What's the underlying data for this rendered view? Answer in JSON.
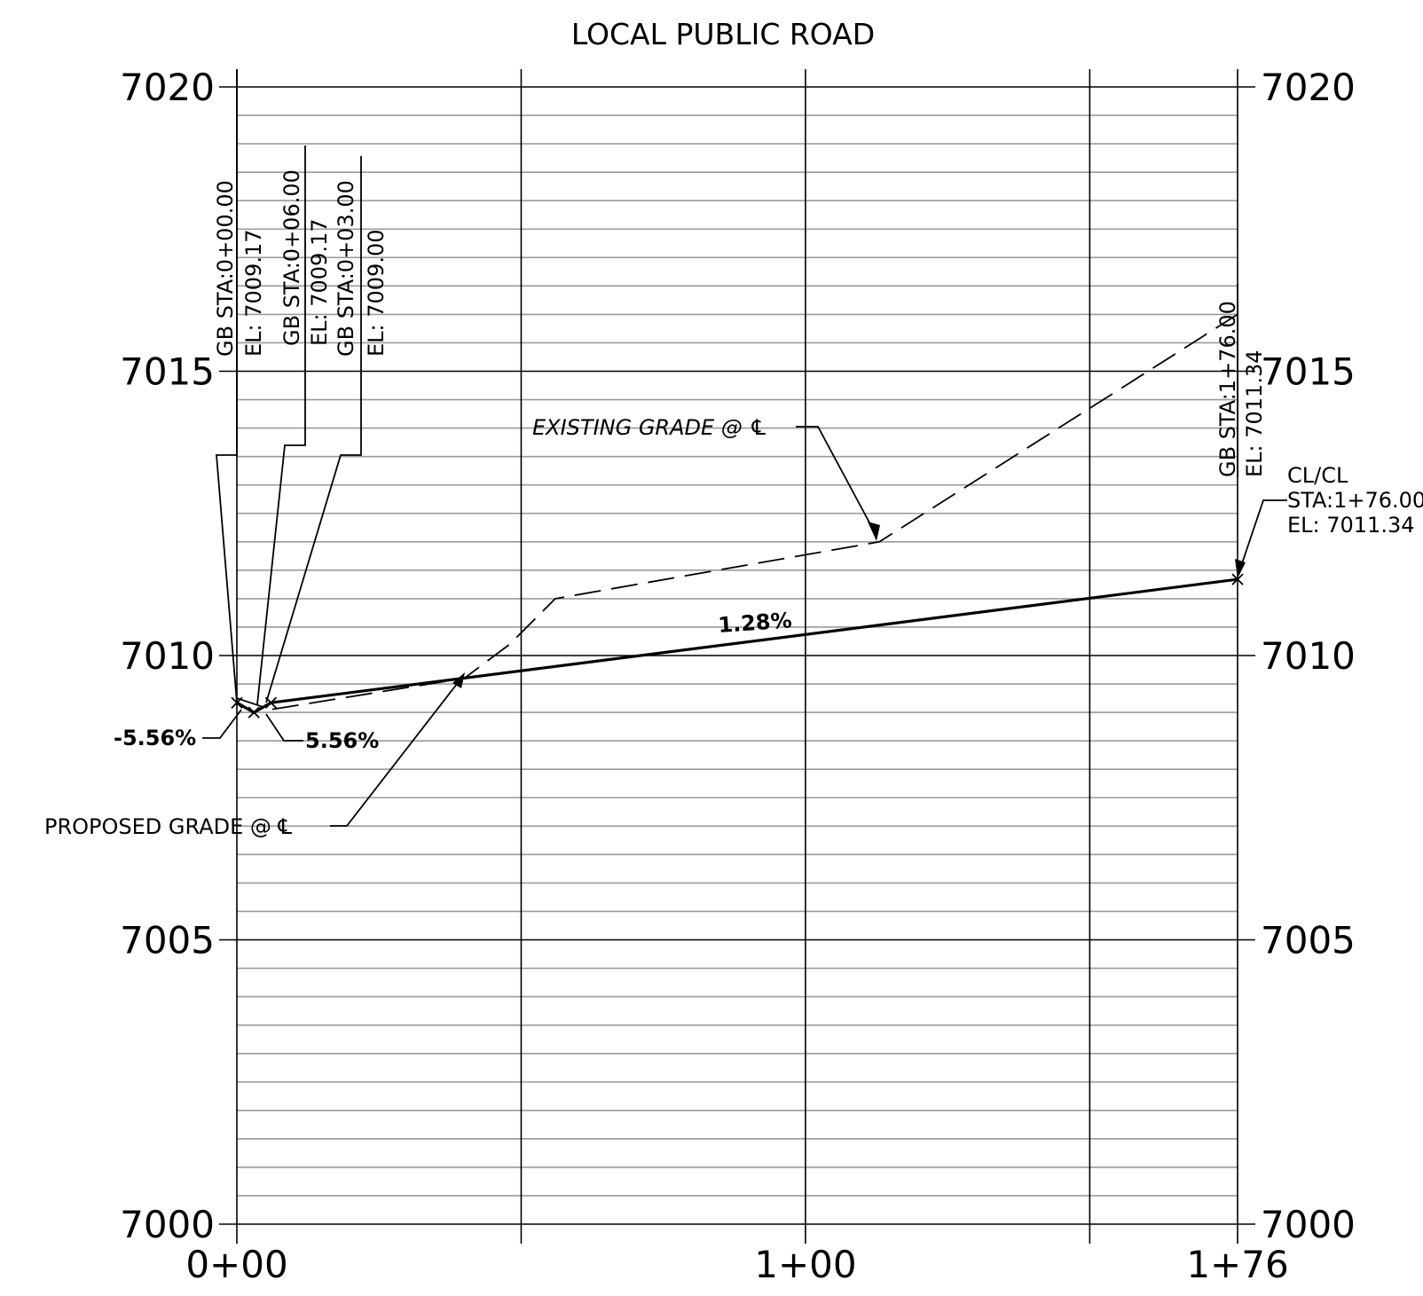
{
  "title": "LOCAL PUBLIC ROAD",
  "chart_data": {
    "type": "line",
    "title": "LOCAL PUBLIC ROAD",
    "xlim": [
      0,
      176
    ],
    "ylim": [
      7000,
      7020
    ],
    "x_ticks": [
      {
        "value": 0,
        "label": "0+00"
      },
      {
        "value": 100,
        "label": "1+00"
      },
      {
        "value": 176,
        "label": "1+76"
      }
    ],
    "y_ticks": [
      {
        "value": 7000,
        "label": "7000"
      },
      {
        "value": 7005,
        "label": "7005"
      },
      {
        "value": 7010,
        "label": "7010"
      },
      {
        "value": 7015,
        "label": "7015"
      },
      {
        "value": 7020,
        "label": "7020"
      }
    ],
    "y_ticks_both_sides": true,
    "minor_grid_interval": 0.5,
    "major_grid_y_interval": 5,
    "major_grid_x_interval": 50,
    "grid": true,
    "series": [
      {
        "name": "PROPOSED GRADE @ ℄",
        "style": "solid",
        "x": [
          0,
          3,
          6,
          176
        ],
        "y": [
          7009.17,
          7009.0,
          7009.17,
          7011.34
        ]
      },
      {
        "name": "EXISTING GRADE @ ℄",
        "style": "dashed",
        "x": [
          0,
          6,
          40,
          48,
          56,
          113,
          176
        ],
        "y": [
          7009.25,
          7009.05,
          7009.6,
          7010.2,
          7011.0,
          7012.0,
          7016.0
        ]
      }
    ]
  },
  "labels": {
    "gb0_sta": "GB STA:0+00.00",
    "gb0_el": "EL: 7009.17",
    "gb6_sta": "GB STA:0+06.00",
    "gb6_el": "EL: 7009.17",
    "gb3_sta": "GB STA:0+03.00",
    "gb3_el": "EL: 7009.00",
    "gb176_sta": "GB STA:1+76.00",
    "gb176_el": "EL: 7011.34",
    "clcl_1": "CL/CL",
    "clcl_2": "STA:1+76.00",
    "clcl_3": "EL: 7011.34",
    "existing_grade": "EXISTING GRADE @ ℄",
    "proposed_grade": "PROPOSED GRADE @ ℄",
    "slope_main": "1.28%",
    "slope_left": "-5.56%",
    "slope_right": "5.56%"
  }
}
